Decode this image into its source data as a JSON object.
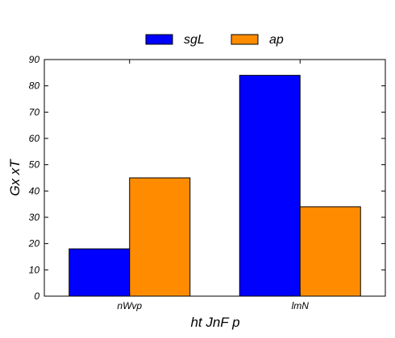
{
  "chart_data": {
    "type": "bar",
    "categories": [
      "nWvp",
      "lmN"
    ],
    "series": [
      {
        "name": "sgL",
        "values": [
          18,
          84
        ],
        "color": "#0000ff"
      },
      {
        "name": "ap",
        "values": [
          45,
          34
        ],
        "color": "#ff8c00"
      }
    ],
    "xlabel": "ht JnF p",
    "ylabel": "Gx xT",
    "ylim": [
      0,
      90
    ],
    "yticks": [
      0,
      10,
      20,
      30,
      40,
      50,
      60,
      70,
      80,
      90
    ],
    "grid": false,
    "legend": "top-center"
  }
}
